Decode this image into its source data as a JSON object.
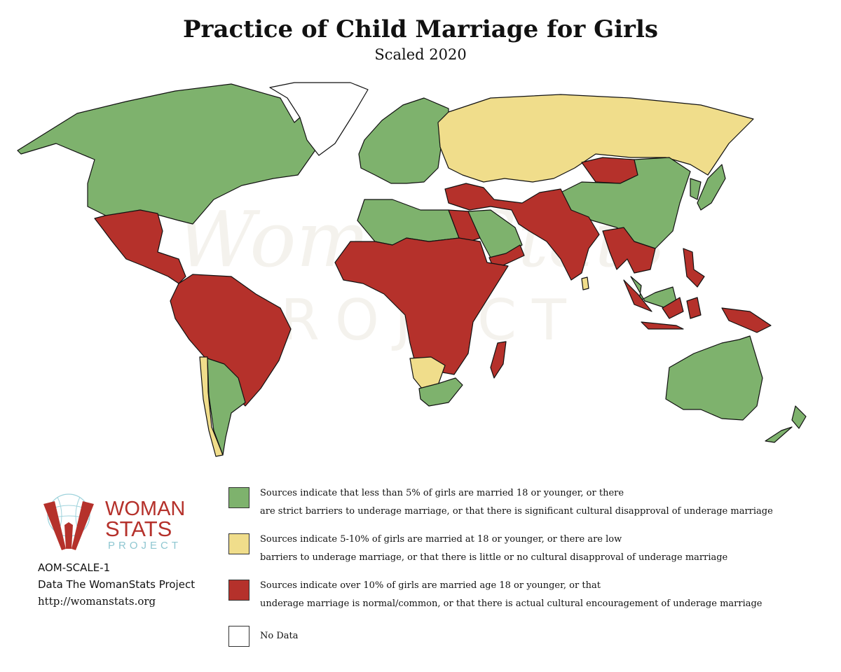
{
  "title": "Practice of Child Marriage for Girls",
  "subtitle": "Scaled 2020",
  "watermark": {
    "line1": "WomanStats",
    "line2": "PROJECT"
  },
  "colors": {
    "level_low": "#7eb26d",
    "level_medium": "#f0dd8b",
    "level_high": "#b5312b",
    "no_data": "#ffffff",
    "ocean": "#ffffff",
    "outline": "#111111"
  },
  "legend": [
    {
      "color_key": "level_low",
      "line1": "Sources indicate that less than 5% of girls are married 18 or younger, or there",
      "line2": "are strict barriers to underage marriage, or that there is significant cultural disapproval of underage marriage"
    },
    {
      "color_key": "level_medium",
      "line1": "Sources indicate 5-10% of girls are married at 18 or younger, or there are low",
      "line2": "barriers to underage marriage, or that there is little or no cultural disapproval of underage marriage"
    },
    {
      "color_key": "level_high",
      "line1": "Sources indicate over 10% of girls are married age 18 or younger, or that",
      "line2": "underage marriage is normal/common, or that there is actual cultural encouragement of underage marriage"
    },
    {
      "color_key": "no_data",
      "line1": "No Data",
      "line2": ""
    }
  ],
  "logo": {
    "word1": "WOMAN",
    "word2": "STATS",
    "word3": "PROJECT"
  },
  "credits": {
    "code": "AOM-SCALE-1",
    "source": "Data The WomanStats Project",
    "url": "http://womanstats.org"
  },
  "regions": [
    {
      "name": "North America",
      "level": "level_low"
    },
    {
      "name": "Mexico and Central America",
      "level": "level_high"
    },
    {
      "name": "South America (north and Brazil)",
      "level": "level_high"
    },
    {
      "name": "Chile",
      "level": "level_medium"
    },
    {
      "name": "Argentina and Uruguay",
      "level": "level_low"
    },
    {
      "name": "Europe",
      "level": "level_low"
    },
    {
      "name": "Russia and Central Asia",
      "level": "level_medium"
    },
    {
      "name": "Mongolia",
      "level": "level_high"
    },
    {
      "name": "China",
      "level": "level_low"
    },
    {
      "name": "Japan and Korea",
      "level": "level_low"
    },
    {
      "name": "North Africa",
      "level": "level_low"
    },
    {
      "name": "Egypt",
      "level": "level_high"
    },
    {
      "name": "Arabian Peninsula",
      "level": "level_low"
    },
    {
      "name": "Yemen",
      "level": "level_high"
    },
    {
      "name": "Middle East and South Asia",
      "level": "level_high"
    },
    {
      "name": "Sub-Saharan Africa",
      "level": "level_high"
    },
    {
      "name": "Namibia and Botswana",
      "level": "level_medium"
    },
    {
      "name": "South Africa",
      "level": "level_low"
    },
    {
      "name": "Madagascar",
      "level": "level_high"
    },
    {
      "name": "Southeast Asia",
      "level": "level_high"
    },
    {
      "name": "Malaysia",
      "level": "level_low"
    },
    {
      "name": "Indonesia",
      "level": "level_high"
    },
    {
      "name": "Philippines",
      "level": "level_high"
    },
    {
      "name": "Sri Lanka",
      "level": "level_medium"
    },
    {
      "name": "Australia",
      "level": "level_low"
    },
    {
      "name": "New Zealand",
      "level": "level_low"
    },
    {
      "name": "Greenland",
      "level": "no_data"
    }
  ]
}
